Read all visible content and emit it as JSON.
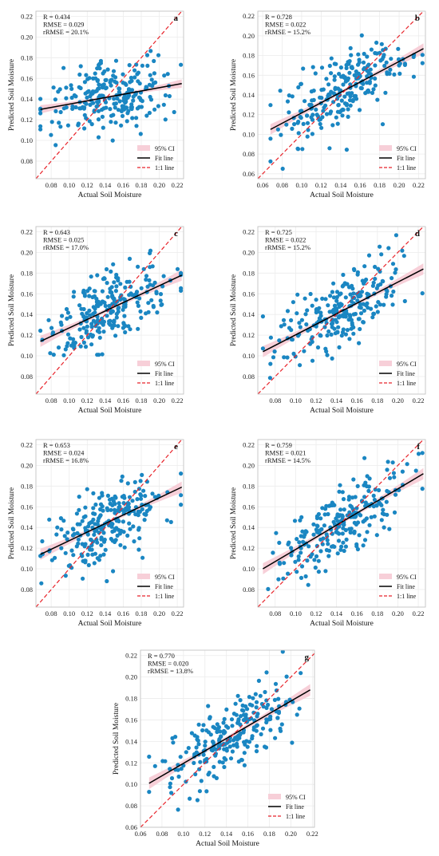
{
  "figure": {
    "legend": {
      "ci": "95% CI",
      "fit": "Fit line",
      "one_to_one": "1:1 line"
    }
  },
  "colors": {
    "point": "#1a86c2",
    "fit": "#000000",
    "one_to_one": "#e8232a",
    "ci": "#f7cfd8",
    "grid": "#ececec"
  },
  "chart_data": [
    {
      "type": "scatter",
      "panel_label": "a",
      "xlabel": "Actual Soil Moisture",
      "ylabel": "Predicted Soil Moisture",
      "stats": [
        "R = 0.434",
        "RMSE = 0.029",
        "rRMSE = 20.1%"
      ],
      "xlim": [
        0.063,
        0.227
      ],
      "ylim": [
        0.063,
        0.225
      ],
      "xticks": [
        "0.08",
        "0.10",
        "0.12",
        "0.14",
        "0.16",
        "0.18",
        "0.20",
        "0.22"
      ],
      "yticks": [
        "0.08",
        "0.10",
        "0.12",
        "0.14",
        "0.16",
        "0.18",
        "0.20",
        "0.22"
      ],
      "fit": {
        "x": [
          0.068,
          0.225
        ],
        "y": [
          0.13,
          0.155
        ]
      },
      "ci_halfwidth": 0.003,
      "seed": 11
    },
    {
      "type": "scatter",
      "panel_label": "b",
      "xlabel": "Actual Soil Moisture",
      "ylabel": "Predicted Soil Moisture",
      "stats": [
        "R = 0.728",
        "RMSE = 0.022",
        "rRMSE = 15.2%"
      ],
      "xlim": [
        0.055,
        0.227
      ],
      "ylim": [
        0.055,
        0.225
      ],
      "xticks": [
        "0.06",
        "0.08",
        "0.10",
        "0.12",
        "0.14",
        "0.16",
        "0.18",
        "0.20",
        "0.22"
      ],
      "yticks": [
        "0.06",
        "0.08",
        "0.10",
        "0.12",
        "0.14",
        "0.16",
        "0.18",
        "0.20",
        "0.22"
      ],
      "fit": {
        "x": [
          0.068,
          0.225
        ],
        "y": [
          0.105,
          0.187
        ]
      },
      "ci_halfwidth": 0.004,
      "seed": 22
    },
    {
      "type": "scatter",
      "panel_label": "c",
      "xlabel": "Actual Soil Moisture",
      "ylabel": "Predicted Soil Moisture",
      "stats": [
        "R = 0.643",
        "RMSE = 0.025",
        "rRMSE = 17.0%"
      ],
      "xlim": [
        0.063,
        0.227
      ],
      "ylim": [
        0.063,
        0.225
      ],
      "xticks": [
        "0.08",
        "0.10",
        "0.12",
        "0.14",
        "0.16",
        "0.18",
        "0.20",
        "0.22"
      ],
      "yticks": [
        "0.08",
        "0.10",
        "0.12",
        "0.14",
        "0.16",
        "0.18",
        "0.20",
        "0.22"
      ],
      "fit": {
        "x": [
          0.068,
          0.225
        ],
        "y": [
          0.114,
          0.178
        ]
      },
      "ci_halfwidth": 0.004,
      "seed": 33
    },
    {
      "type": "scatter",
      "panel_label": "d",
      "xlabel": "Actual Soil Moisture",
      "ylabel": "Predicted Soil Moisture",
      "stats": [
        "R = 0.725",
        "RMSE = 0.022",
        "rRMSE = 15.2%"
      ],
      "xlim": [
        0.063,
        0.227
      ],
      "ylim": [
        0.063,
        0.225
      ],
      "xticks": [
        "0.08",
        "0.10",
        "0.12",
        "0.14",
        "0.16",
        "0.18",
        "0.20",
        "0.22"
      ],
      "yticks": [
        "0.08",
        "0.10",
        "0.12",
        "0.14",
        "0.16",
        "0.18",
        "0.20",
        "0.22"
      ],
      "fit": {
        "x": [
          0.068,
          0.225
        ],
        "y": [
          0.104,
          0.184
        ]
      },
      "ci_halfwidth": 0.004,
      "seed": 44
    },
    {
      "type": "scatter",
      "panel_label": "e",
      "xlabel": "Actual Soil Moisture",
      "ylabel": "Predicted Soil Moisture",
      "stats": [
        "R = 0.653",
        "RMSE = 0.024",
        "rRMSE = 16.8%"
      ],
      "xlim": [
        0.063,
        0.227
      ],
      "ylim": [
        0.063,
        0.225
      ],
      "xticks": [
        "0.08",
        "0.10",
        "0.12",
        "0.14",
        "0.16",
        "0.18",
        "0.20",
        "0.22"
      ],
      "yticks": [
        "0.08",
        "0.10",
        "0.12",
        "0.14",
        "0.16",
        "0.18",
        "0.20",
        "0.22"
      ],
      "fit": {
        "x": [
          0.068,
          0.225
        ],
        "y": [
          0.114,
          0.179
        ]
      },
      "ci_halfwidth": 0.004,
      "seed": 55
    },
    {
      "type": "scatter",
      "panel_label": "f",
      "xlabel": "Actual Soil Moisture",
      "ylabel": "Predicted Soil Moisture",
      "stats": [
        "R = 0.759",
        "RMSE = 0.021",
        "rRMSE = 14.5%"
      ],
      "xlim": [
        0.063,
        0.227
      ],
      "ylim": [
        0.063,
        0.225
      ],
      "xticks": [
        "0.08",
        "0.10",
        "0.12",
        "0.14",
        "0.16",
        "0.18",
        "0.20",
        "0.22"
      ],
      "yticks": [
        "0.08",
        "0.10",
        "0.12",
        "0.14",
        "0.16",
        "0.18",
        "0.20",
        "0.22"
      ],
      "fit": {
        "x": [
          0.068,
          0.225
        ],
        "y": [
          0.1,
          0.192
        ]
      },
      "ci_halfwidth": 0.004,
      "seed": 66
    },
    {
      "type": "scatter",
      "panel_label": "g",
      "xlabel": "Actual Soil Moisture",
      "ylabel": "Predicted Soil Moisture",
      "stats": [
        "R = 0.770",
        "RMSE = 0.020",
        "rRMSE = 13.8%"
      ],
      "xlim": [
        0.06,
        0.222
      ],
      "ylim": [
        0.06,
        0.225
      ],
      "xticks": [
        "0.06",
        "0.08",
        "0.10",
        "0.12",
        "0.14",
        "0.16",
        "0.18",
        "0.20",
        "0.22"
      ],
      "yticks": [
        "0.06",
        "0.08",
        "0.10",
        "0.12",
        "0.14",
        "0.16",
        "0.18",
        "0.20",
        "0.22"
      ],
      "fit": {
        "x": [
          0.068,
          0.218
        ],
        "y": [
          0.101,
          0.188
        ]
      },
      "ci_halfwidth": 0.004,
      "seed": 77
    }
  ]
}
